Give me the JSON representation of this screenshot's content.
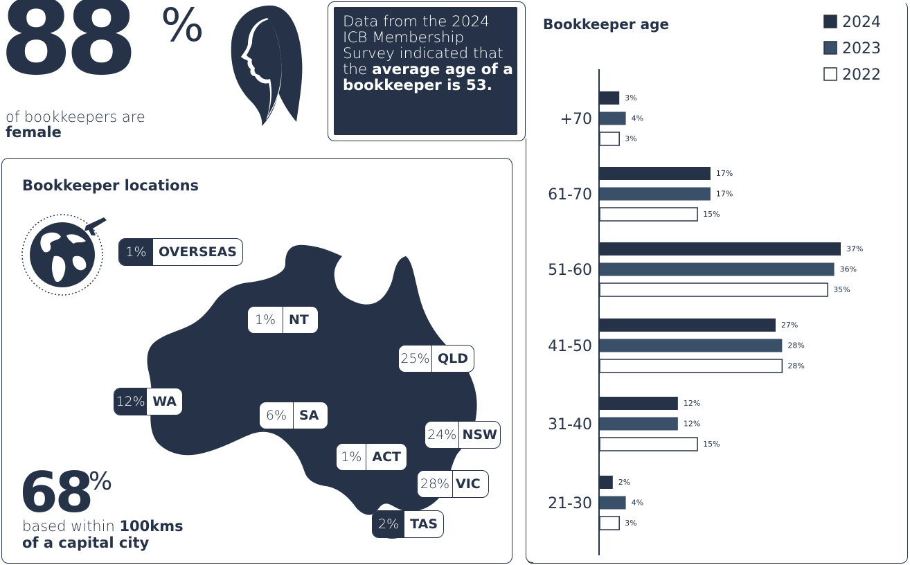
{
  "colors": {
    "navy": "#253247",
    "slate": "#3a5068",
    "white": "#ffffff"
  },
  "female_stat": {
    "value": "88",
    "unit": "%",
    "line1": "of bookkeepers are",
    "line2": "female",
    "icon": "woman-profile-icon"
  },
  "info_box": {
    "text_plain": "Data from the 2024 ICB Membership Survey indicated that the ",
    "text_bold": "average age of a bookkeeper is 53."
  },
  "locations": {
    "title": "Bookkeeper locations",
    "icon": "globe-plane-icon",
    "items": [
      {
        "pct": "1%",
        "state": "OVERSEAS"
      },
      {
        "pct": "1%",
        "state": "NT"
      },
      {
        "pct": "25%",
        "state": "QLD"
      },
      {
        "pct": "12%",
        "state": "WA"
      },
      {
        "pct": "6%",
        "state": "SA"
      },
      {
        "pct": "24%",
        "state": "NSW"
      },
      {
        "pct": "1%",
        "state": "ACT"
      },
      {
        "pct": "28%",
        "state": "VIC"
      },
      {
        "pct": "2%",
        "state": "TAS"
      }
    ]
  },
  "capital_stat": {
    "value": "68",
    "unit": "%",
    "line1_plain": "based within ",
    "line1_bold": "100kms",
    "line2": "of a capital city"
  },
  "chart_data": {
    "type": "bar",
    "orientation": "horizontal",
    "title": "Bookkeeper age",
    "categories": [
      "+70",
      "61-70",
      "51-60",
      "41-50",
      "31-40",
      "21-30"
    ],
    "series": [
      {
        "name": "2024",
        "color": "#253247",
        "fill": "solid",
        "values": [
          3,
          17,
          37,
          27,
          12,
          2
        ]
      },
      {
        "name": "2023",
        "color": "#3a5068",
        "fill": "solid",
        "values": [
          4,
          17,
          36,
          28,
          12,
          4
        ]
      },
      {
        "name": "2022",
        "color": "#ffffff",
        "fill": "outline",
        "values": [
          3,
          15,
          35,
          28,
          15,
          3
        ]
      }
    ],
    "value_suffix": "%",
    "xlim": [
      0,
      37
    ],
    "legend": "top-right",
    "grid": false
  }
}
